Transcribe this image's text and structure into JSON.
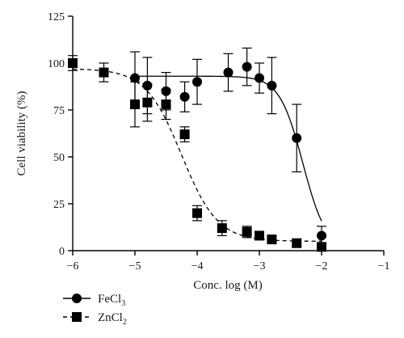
{
  "chart_data": {
    "type": "scatter",
    "title": "",
    "xlabel": "Conc. log (M)",
    "ylabel": "Cell viability (%)",
    "xlim": [
      -6,
      -1
    ],
    "ylim": [
      0,
      125
    ],
    "xticks": [
      -6,
      -5,
      -4,
      -3,
      -2,
      -1
    ],
    "yticks": [
      0,
      25,
      50,
      75,
      100,
      125
    ],
    "xtick_labels": [
      "−6",
      "−5",
      "−4",
      "−3",
      "−2",
      "−1"
    ],
    "ytick_labels": [
      "0",
      "25",
      "50",
      "75",
      "100",
      "125"
    ],
    "grid": false,
    "legend": "bottom-left",
    "series": [
      {
        "name": "FeCl3",
        "label_main": "FeCl",
        "label_sub": "3",
        "marker": "circle",
        "line_style": "solid",
        "color": "#000000",
        "x": [
          -5.0,
          -4.8,
          -4.5,
          -4.2,
          -4.0,
          -3.5,
          -3.2,
          -3.0,
          -2.8,
          -2.4,
          -2.0
        ],
        "y": [
          92,
          88,
          85,
          82,
          90,
          95,
          98,
          92,
          88,
          60,
          8
        ],
        "err": [
          14,
          15,
          10,
          8,
          12,
          10,
          10,
          8,
          15,
          18,
          5
        ],
        "fit": {
          "top": 93,
          "bottom": 0,
          "logIC50": -2.3,
          "hill": -2.3
        }
      },
      {
        "name": "ZnCl2",
        "label_main": "ZnCl",
        "label_sub": "2",
        "marker": "square",
        "line_style": "dashed",
        "color": "#000000",
        "x": [
          -6.0,
          -5.5,
          -5.0,
          -4.8,
          -4.5,
          -4.2,
          -4.0,
          -3.6,
          -3.2,
          -3.0,
          -2.8,
          -2.4,
          -2.0
        ],
        "y": [
          100,
          95,
          78,
          79,
          78,
          62,
          20,
          12,
          10,
          8,
          6,
          4,
          2
        ],
        "err": [
          4,
          5,
          12,
          10,
          8,
          4,
          4,
          4,
          3,
          2,
          2,
          2,
          2
        ],
        "fit": {
          "top": 97,
          "bottom": 5,
          "logIC50": -4.25,
          "hill": -1.5
        }
      }
    ]
  }
}
